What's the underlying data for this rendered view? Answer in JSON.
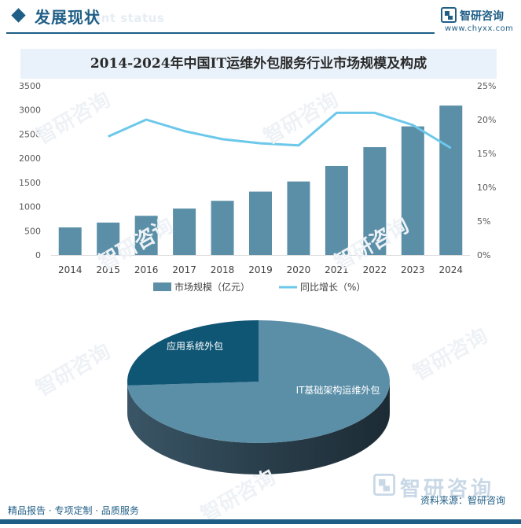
{
  "header": {
    "section_title": "发展现状",
    "section_subtitle": "ent status",
    "brand_name": "智研咨询",
    "brand_url": "www.chyxx.com"
  },
  "watermark_text": "智研咨询",
  "chart_data": [
    {
      "type": "bar+line",
      "title": "2014-2024年中国IT运维外包服务行业市场规模及构成",
      "categories": [
        "2014",
        "2015",
        "2016",
        "2017",
        "2018",
        "2019",
        "2020",
        "2021",
        "2022",
        "2023",
        "2024"
      ],
      "series": [
        {
          "name": "市场规模（亿元）",
          "type": "bar",
          "axis": "left",
          "color": "#5b8fa8",
          "values": [
            570,
            670,
            810,
            960,
            1120,
            1310,
            1520,
            1840,
            2230,
            2660,
            3090
          ]
        },
        {
          "name": "同比增长（%）",
          "type": "line",
          "axis": "right",
          "color": "#6cc8ea",
          "values": [
            null,
            17.5,
            20.0,
            18.3,
            17.1,
            16.5,
            16.2,
            21.0,
            21.0,
            19.2,
            15.8
          ]
        }
      ],
      "left_axis": {
        "ylim": [
          0,
          3500
        ],
        "ticks": [
          "0",
          "500",
          "1000",
          "1500",
          "2000",
          "2500",
          "3000",
          "3500"
        ]
      },
      "right_axis": {
        "ylim": [
          0,
          25
        ],
        "ticks": [
          "0%",
          "5%",
          "10%",
          "15%",
          "20%",
          "25%"
        ]
      },
      "legend": "bottom-center",
      "grid": false
    },
    {
      "type": "pie",
      "style": "3d",
      "slices": [
        {
          "label": "IT基础架构运维外包",
          "value": 74,
          "color": "#5b8fa8"
        },
        {
          "label": "应用系统外包",
          "value": 26,
          "color": "#0f5674"
        }
      ]
    }
  ],
  "footer": {
    "left": "精品报告 · 专项定制 · 品质服务",
    "right": "资料来源：智研咨询",
    "big_brand": "智研咨询"
  }
}
